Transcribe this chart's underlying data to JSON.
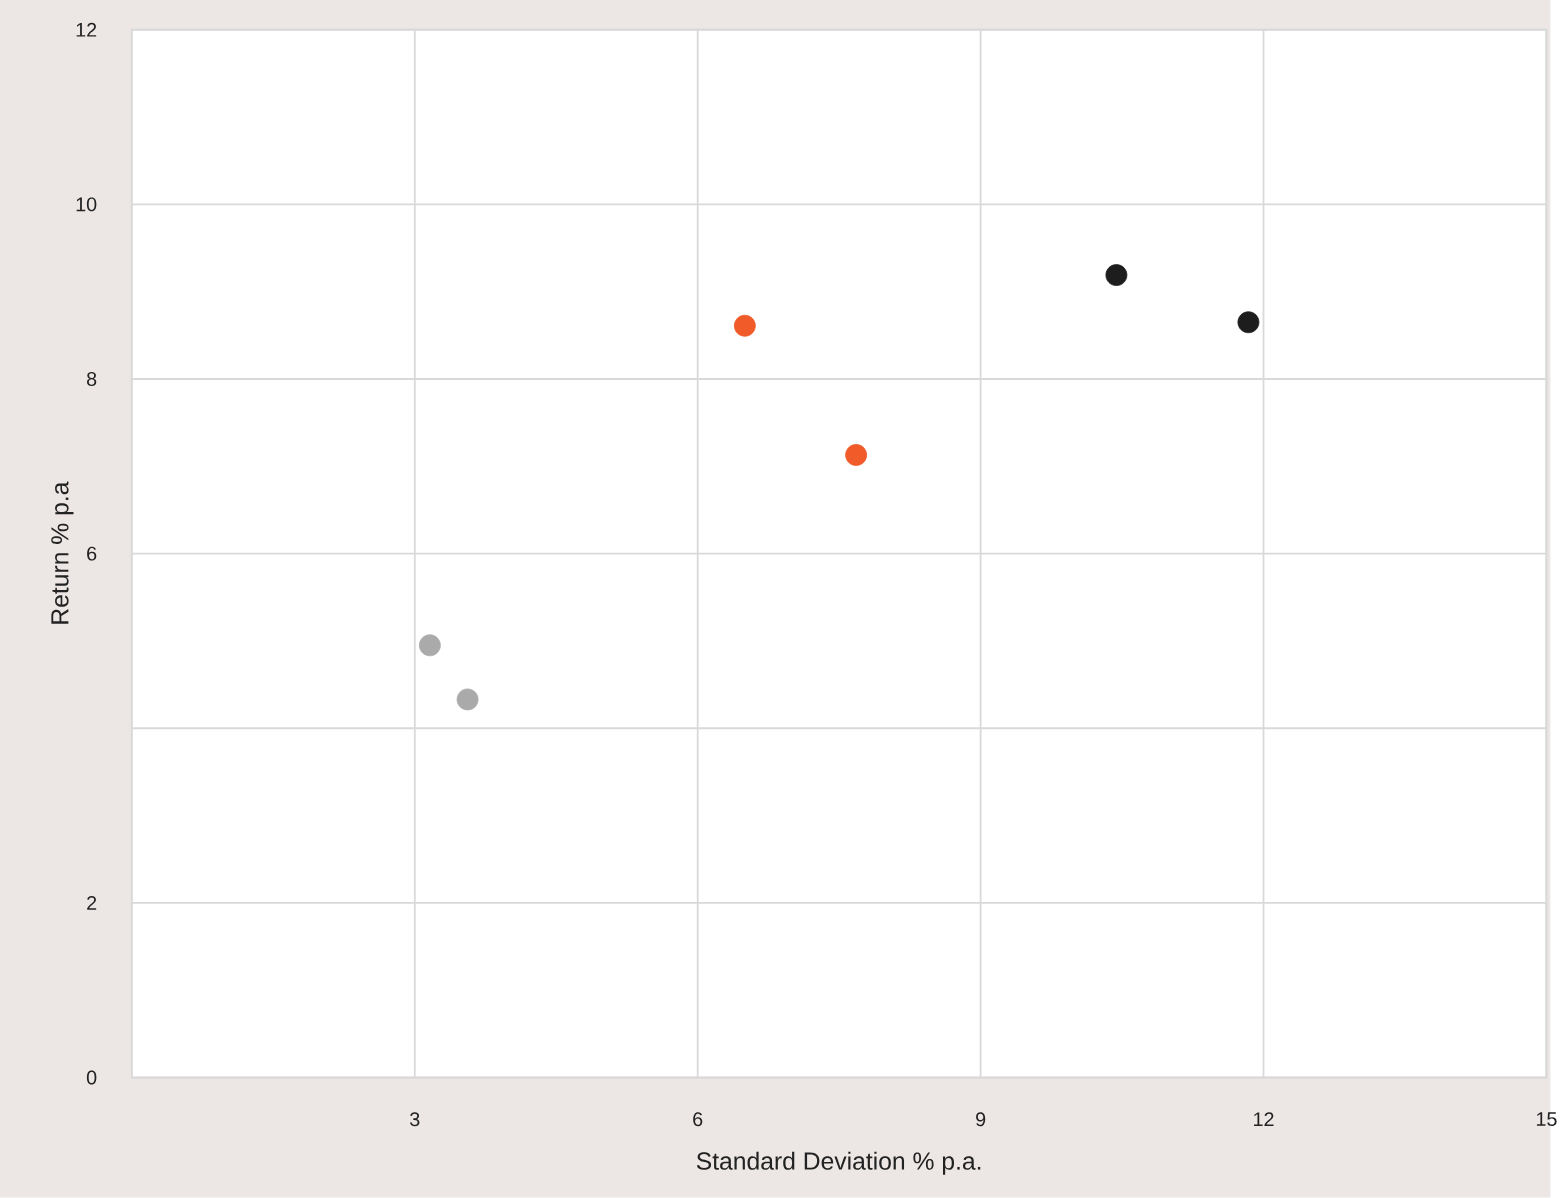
{
  "chart_data": {
    "type": "scatter",
    "xlabel": "Standard Deviation % p.a.",
    "ylabel": "Return % p.a",
    "xlim": [
      0,
      15
    ],
    "ylim": [
      0,
      12
    ],
    "xticks": [
      3,
      6,
      9,
      12,
      15
    ],
    "yticks": [
      0,
      2,
      {
        "value": 4,
        "label": null
      },
      6,
      8,
      10,
      12
    ],
    "grid": true,
    "series": [
      {
        "color": "#aaaaaa",
        "x": [
          3.16
        ],
        "values": [
          4.95
        ]
      },
      {
        "color": "#aaaaaa",
        "x": [
          3.56
        ],
        "values": [
          4.33
        ]
      },
      {
        "color": "#f15a29",
        "x": [
          6.5
        ],
        "values": [
          8.61
        ]
      },
      {
        "color": "#f15a29",
        "x": [
          7.68
        ],
        "values": [
          7.13
        ]
      },
      {
        "color": "#1d1d1d",
        "x": [
          10.44
        ],
        "values": [
          9.19
        ]
      },
      {
        "color": "#1d1d1d",
        "x": [
          11.84
        ],
        "values": [
          8.65
        ]
      }
    ]
  }
}
